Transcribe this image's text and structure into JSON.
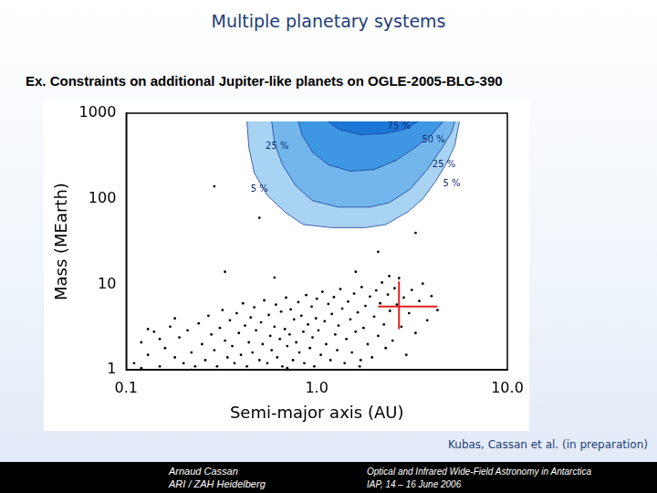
{
  "slide": {
    "title": "Multiple planetary systems",
    "subtitle": "Ex. Constraints on additional Jupiter-like planets on OGLE-2005-BLG-390",
    "citation": "Kubas, Cassan et al. (in preparation)",
    "footer_left": [
      "Arnaud Cassan",
      "ARI / ZAH Heidelberg"
    ],
    "footer_right": [
      "Optical and Infrared Wide-Field Astronomy in Antarctica",
      "IAP, 14 – 16 June 2006"
    ]
  },
  "chart_data": {
    "type": "scatter",
    "xlabel": "Semi-major axis (AU)",
    "ylabel": "Mass (MEarth)",
    "log": true,
    "grid": false,
    "xlim": [
      0.1,
      10
    ],
    "ylim": [
      1,
      1000
    ],
    "xticks": [
      {
        "value": 0.1,
        "label": "0.1"
      },
      {
        "value": 1,
        "label": "1.0"
      },
      {
        "value": 10,
        "label": "10.0"
      }
    ],
    "yticks": [
      1,
      10,
      100,
      1000
    ],
    "contours": [
      {
        "color": "#a9d3f2",
        "x": [
          0.43,
          0.44,
          0.47,
          0.55,
          0.68,
          0.85,
          1.2,
          1.8,
          2.3,
          3.0,
          3.6,
          4.2,
          4.8,
          5.3,
          5.6
        ],
        "y": [
          800,
          400,
          200,
          110,
          70,
          50,
          46,
          46,
          50,
          70,
          100,
          160,
          260,
          420,
          800
        ],
        "labels": [
          {
            "text": "5 %",
            "x": 0.5,
            "y": 130
          },
          {
            "text": "5 %",
            "x": 5.1,
            "y": 150
          }
        ]
      },
      {
        "color": "#72b6ec",
        "x": [
          0.58,
          0.6,
          0.66,
          0.78,
          0.95,
          1.3,
          1.9,
          2.4,
          3.1,
          3.8,
          4.5,
          5.1,
          5.3
        ],
        "y": [
          800,
          450,
          250,
          140,
          95,
          80,
          80,
          90,
          130,
          220,
          380,
          600,
          800
        ],
        "labels": [
          {
            "text": "25 %",
            "x": 0.62,
            "y": 410
          },
          {
            "text": "25 %",
            "x": 4.65,
            "y": 250
          }
        ]
      },
      {
        "color": "#3f96e2",
        "x": [
          0.8,
          0.84,
          0.95,
          1.15,
          1.5,
          2.0,
          2.6,
          3.3,
          4.0,
          4.6
        ],
        "y": [
          800,
          550,
          350,
          250,
          210,
          220,
          280,
          400,
          560,
          800
        ],
        "labels": [
          {
            "text": "50 %",
            "x": 4.1,
            "y": 490
          }
        ]
      },
      {
        "color": "#1c76d6",
        "x": [
          1.15,
          1.3,
          1.7,
          2.3,
          2.9,
          3.4
        ],
        "y": [
          800,
          650,
          560,
          580,
          650,
          800
        ],
        "labels": [
          {
            "text": "75 %",
            "x": 2.7,
            "y": 700
          }
        ]
      }
    ],
    "series": [
      {
        "color": "#000000",
        "marker": "circle",
        "x": [
          0.11,
          0.12,
          0.13,
          0.14,
          0.15,
          0.16,
          0.17,
          0.18,
          0.19,
          0.2,
          0.12,
          0.15,
          0.18,
          0.21,
          0.22,
          0.23,
          0.24,
          0.25,
          0.26,
          0.27,
          0.28,
          0.29,
          0.3,
          0.31,
          0.32,
          0.33,
          0.34,
          0.35,
          0.36,
          0.37,
          0.38,
          0.39,
          0.4,
          0.41,
          0.42,
          0.43,
          0.44,
          0.45,
          0.46,
          0.47,
          0.48,
          0.5,
          0.51,
          0.52,
          0.53,
          0.55,
          0.56,
          0.57,
          0.58,
          0.6,
          0.61,
          0.62,
          0.64,
          0.65,
          0.66,
          0.68,
          0.69,
          0.7,
          0.72,
          0.73,
          0.75,
          0.76,
          0.78,
          0.8,
          0.81,
          0.83,
          0.85,
          0.86,
          0.88,
          0.9,
          0.92,
          0.94,
          0.95,
          0.97,
          0.99,
          1.0,
          1.02,
          1.05,
          1.07,
          1.1,
          1.12,
          1.15,
          1.18,
          1.2,
          1.23,
          1.25,
          1.28,
          1.3,
          1.33,
          1.36,
          1.4,
          1.43,
          1.46,
          1.5,
          1.53,
          1.57,
          1.6,
          1.64,
          1.68,
          1.72,
          1.76,
          1.8,
          1.85,
          1.9,
          1.95,
          2.0,
          2.05,
          2.1,
          2.15,
          2.2,
          2.25,
          2.3,
          2.36,
          2.42,
          2.5,
          2.56,
          2.63,
          2.7,
          2.78,
          2.86,
          2.95,
          3.05,
          3.15,
          3.3,
          3.45,
          3.6,
          3.8,
          4.0,
          4.3,
          2.4,
          1.7,
          0.13,
          0.22,
          0.7,
          0.29,
          0.5,
          0.33,
          2.1,
          3.3,
          1.6,
          0.6
        ],
        "values": [
          1.2,
          2.1,
          1.5,
          2.8,
          1.1,
          1.8,
          3.2,
          1.4,
          2.4,
          1.2,
          1.05,
          2.3,
          4.0,
          2.9,
          1.6,
          1.1,
          3.5,
          2.0,
          1.3,
          4.3,
          2.6,
          1.7,
          1.1,
          3.1,
          5.0,
          2.2,
          1.4,
          3.8,
          1.9,
          1.2,
          4.6,
          2.7,
          1.5,
          6.0,
          3.3,
          1.1,
          2.1,
          4.1,
          1.6,
          5.4,
          2.9,
          1.3,
          3.6,
          2.0,
          6.5,
          1.2,
          4.4,
          2.5,
          1.7,
          3.2,
          5.8,
          1.4,
          2.3,
          4.8,
          1.1,
          3.0,
          7.0,
          1.9,
          2.6,
          5.1,
          1.3,
          3.9,
          2.1,
          6.2,
          1.6,
          4.3,
          2.8,
          1.2,
          7.5,
          3.4,
          1.8,
          5.5,
          2.4,
          1.1,
          4.0,
          6.8,
          2.9,
          1.5,
          8.2,
          3.7,
          2.0,
          5.9,
          1.3,
          4.5,
          7.1,
          2.6,
          1.7,
          3.3,
          8.8,
          5.2,
          1.2,
          2.3,
          6.3,
          3.9,
          1.6,
          7.8,
          2.8,
          4.7,
          1.1,
          9.3,
          3.1,
          5.6,
          2.0,
          7.2,
          1.4,
          4.2,
          8.5,
          2.5,
          6.0,
          10.5,
          3.4,
          1.8,
          7.6,
          4.9,
          2.2,
          9.0,
          5.8,
          11.8,
          3.2,
          7.0,
          1.5,
          4.6,
          8.6,
          2.7,
          6.4,
          10.2,
          3.8,
          7.3,
          5.0,
          12.5,
          1.3,
          3.0,
          1.0,
          1.05,
          140,
          60,
          14,
          24,
          40,
          14,
          12
        ]
      }
    ],
    "planet": {
      "color": "#e02020",
      "x": 2.7,
      "y": 5.5,
      "x_error": [
        2.1,
        4.3
      ],
      "y_error": [
        3.0,
        10.8
      ]
    }
  }
}
